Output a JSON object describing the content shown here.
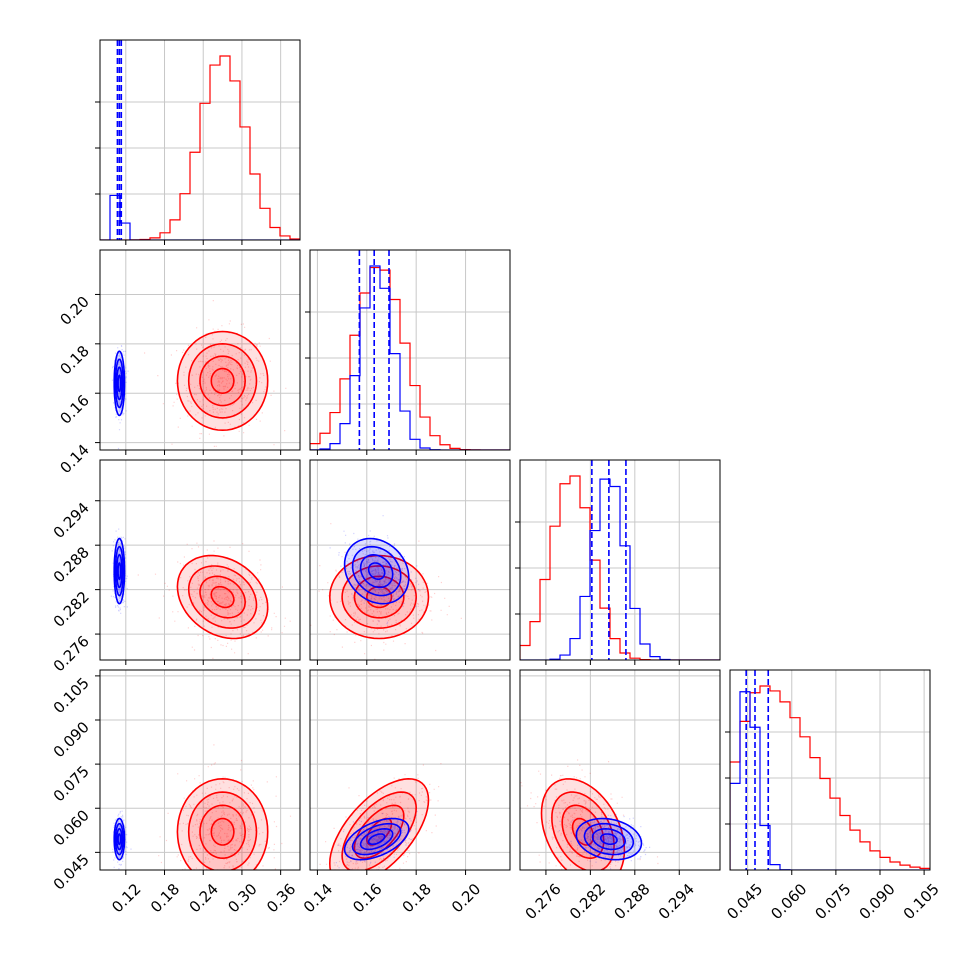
{
  "chart_data": {
    "type": "corner_plot",
    "grid": true,
    "colors": {
      "red": "#ff0000",
      "blue": "#0000ff"
    },
    "parameters": [
      {
        "ticks": [
          "0.12",
          "0.18",
          "0.24",
          "0.30",
          "0.36"
        ],
        "range": [
          0.08,
          0.39
        ]
      },
      {
        "ticks": [
          "0.14",
          "0.16",
          "0.18",
          "0.20"
        ],
        "range": [
          0.137,
          0.218
        ]
      },
      {
        "ticks": [
          "0.276",
          "0.282",
          "0.288",
          "0.294"
        ],
        "range": [
          0.2725,
          0.2995
        ]
      },
      {
        "ticks": [
          "0.045",
          "0.060",
          "0.075",
          "0.090",
          "0.105"
        ],
        "range": [
          0.039,
          0.107
        ]
      }
    ],
    "series": [
      {
        "color": "red",
        "means": [
          0.27,
          0.165,
          0.281,
          0.052
        ],
        "sds": [
          0.035,
          0.01,
          0.0028,
          0.009
        ],
        "corr": [
          [
            1,
            0,
            -0.25,
            0
          ],
          [
            0,
            1,
            0,
            0.6
          ],
          [
            -0.25,
            0,
            1,
            -0.35
          ],
          [
            0,
            0.6,
            -0.35,
            1
          ]
        ],
        "hist_peaks": [
          0.27,
          0.165,
          0.2795,
          0.05
        ],
        "quantiles": []
      },
      {
        "color": "blue",
        "means": [
          0.11,
          0.164,
          0.2845,
          0.0495
        ],
        "sds": [
          0.004,
          0.0065,
          0.0022,
          0.0035
        ],
        "corr": [
          [
            1,
            0,
            0,
            0
          ],
          [
            0,
            1,
            -0.2,
            0.5
          ],
          [
            0,
            -0.2,
            1,
            -0.2
          ],
          [
            0,
            0.5,
            -0.2,
            1
          ]
        ],
        "hist_peaks": [
          0.11,
          0.164,
          0.2845,
          0.045
        ],
        "quantiles": [
          [
            0.107,
            0.11,
            0.113
          ],
          [
            0.157,
            0.163,
            0.169
          ],
          [
            0.2822,
            0.2845,
            0.2868
          ],
          [
            0.0445,
            0.0475,
            0.052
          ]
        ]
      }
    ]
  }
}
